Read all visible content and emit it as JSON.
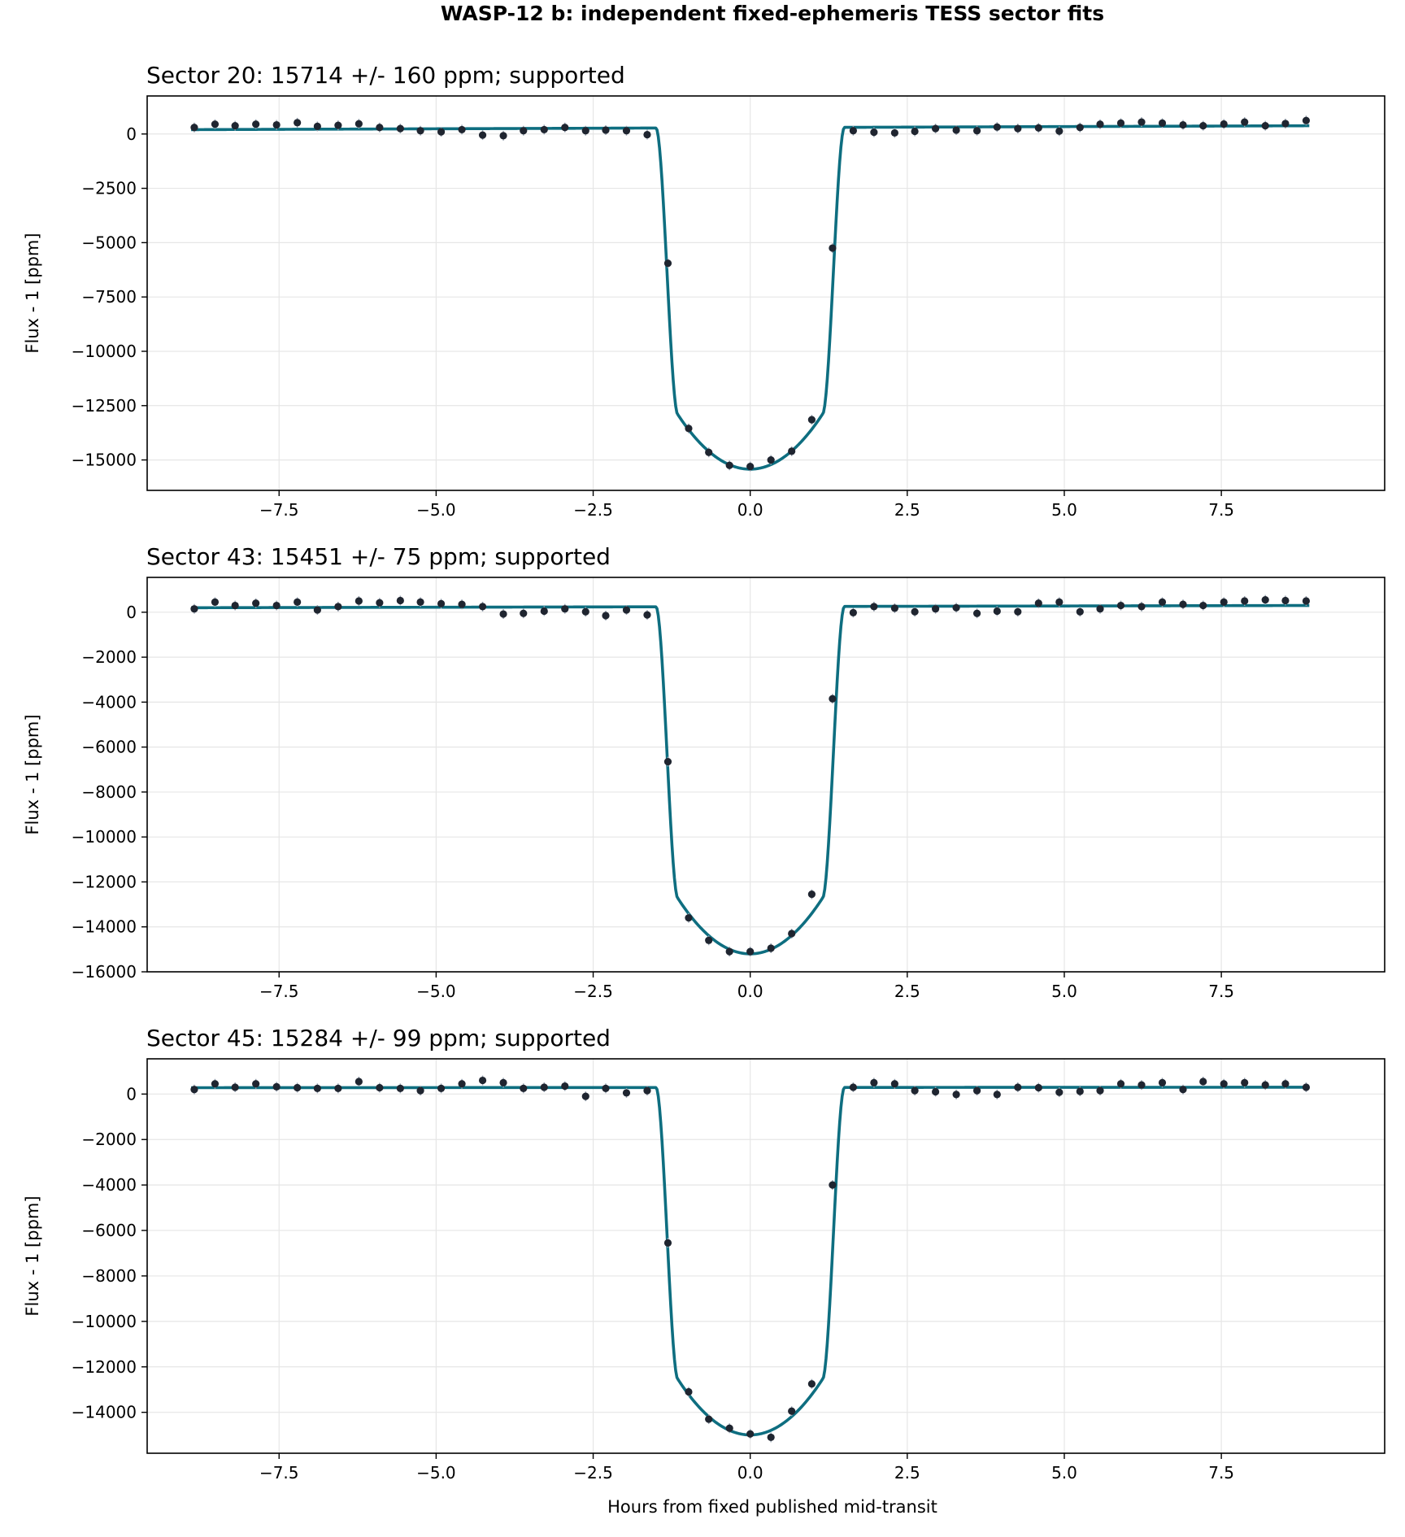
{
  "chart_data": {
    "title": "WASP-12 b: independent fixed-ephemeris TESS sector fits",
    "xlabel": "Hours from fixed published mid-transit",
    "colors": {
      "model": "#0e6e80",
      "points": "#1f2530",
      "grid": "#e6e6e6",
      "errorbar": "#9aa6b4"
    },
    "panels": [
      {
        "type": "scatter",
        "title": "Sector 20: 15714 +/- 160 ppm; supported",
        "ylabel": "Flux - 1 [ppm]",
        "xlim": [
          -9.6,
          10.1
        ],
        "ylim": [
          -16400,
          1750
        ],
        "xticks": [
          -7.5,
          -5.0,
          -2.5,
          0.0,
          2.5,
          5.0,
          7.5
        ],
        "xtick_labels": [
          "−7.5",
          "−5.0",
          "−2.5",
          "0.0",
          "2.5",
          "5.0",
          "7.5"
        ],
        "yticks": [
          0,
          -2500,
          -5000,
          -7500,
          -10000,
          -12500,
          -15000
        ],
        "ytick_labels": [
          "0",
          "−2500",
          "−5000",
          "−7500",
          "−10000",
          "−12500",
          "−15000"
        ],
        "grid": true,
        "model": {
          "depth": 15714,
          "baseline_start": 200,
          "baseline_end": 380,
          "t14": 3.0,
          "t23": 2.3
        },
        "points": {
          "x": [
            -8.85,
            -8.52,
            -8.2,
            -7.87,
            -7.54,
            -7.21,
            -6.89,
            -6.56,
            -6.23,
            -5.9,
            -5.57,
            -5.25,
            -4.92,
            -4.59,
            -4.26,
            -3.93,
            -3.61,
            -3.28,
            -2.95,
            -2.62,
            -2.3,
            -1.97,
            -1.64,
            -1.31,
            -0.98,
            -0.66,
            -0.33,
            0.0,
            0.33,
            0.66,
            0.98,
            1.31,
            1.64,
            1.97,
            2.3,
            2.62,
            2.95,
            3.28,
            3.61,
            3.93,
            4.26,
            4.59,
            4.92,
            5.25,
            5.57,
            5.9,
            6.23,
            6.56,
            6.89,
            7.21,
            7.54,
            7.87,
            8.2,
            8.52,
            8.85
          ],
          "y": [
            300,
            450,
            380,
            450,
            420,
            520,
            350,
            400,
            470,
            300,
            250,
            150,
            100,
            200,
            -50,
            -80,
            150,
            200,
            300,
            150,
            180,
            150,
            -30,
            -5950,
            -13550,
            -14650,
            -15250,
            -15300,
            -15000,
            -14600,
            -13150,
            -5250,
            150,
            80,
            50,
            120,
            250,
            180,
            150,
            320,
            250,
            280,
            130,
            300,
            450,
            500,
            550,
            500,
            420,
            380,
            460,
            550,
            380,
            480,
            620
          ]
        }
      },
      {
        "type": "scatter",
        "title": "Sector 43: 15451 +/- 75 ppm; supported",
        "ylabel": "Flux - 1 [ppm]",
        "xlim": [
          -9.6,
          10.1
        ],
        "ylim": [
          -16000,
          1550
        ],
        "xticks": [
          -7.5,
          -5.0,
          -2.5,
          0.0,
          2.5,
          5.0,
          7.5
        ],
        "xtick_labels": [
          "−7.5",
          "−5.0",
          "−2.5",
          "0.0",
          "2.5",
          "5.0",
          "7.5"
        ],
        "yticks": [
          0,
          -2000,
          -4000,
          -6000,
          -8000,
          -10000,
          -12000,
          -14000,
          -16000
        ],
        "ytick_labels": [
          "0",
          "−2000",
          "−4000",
          "−6000",
          "−8000",
          "−10000",
          "−12000",
          "−14000",
          "−16000"
        ],
        "grid": true,
        "model": {
          "depth": 15451,
          "baseline_start": 200,
          "baseline_end": 300,
          "t14": 3.0,
          "t23": 2.3
        },
        "points": {
          "x": [
            -8.85,
            -8.52,
            -8.2,
            -7.87,
            -7.54,
            -7.21,
            -6.89,
            -6.56,
            -6.23,
            -5.9,
            -5.57,
            -5.25,
            -4.92,
            -4.59,
            -4.26,
            -3.93,
            -3.61,
            -3.28,
            -2.95,
            -2.62,
            -2.3,
            -1.97,
            -1.64,
            -1.31,
            -0.98,
            -0.66,
            -0.33,
            0.0,
            0.33,
            0.66,
            0.98,
            1.31,
            1.64,
            1.97,
            2.3,
            2.62,
            2.95,
            3.28,
            3.61,
            3.93,
            4.26,
            4.59,
            4.92,
            5.25,
            5.57,
            5.9,
            6.23,
            6.56,
            6.89,
            7.21,
            7.54,
            7.87,
            8.2,
            8.52,
            8.85
          ],
          "y": [
            150,
            450,
            300,
            400,
            300,
            450,
            100,
            250,
            500,
            420,
            520,
            450,
            380,
            350,
            250,
            -80,
            -50,
            50,
            150,
            20,
            -150,
            100,
            -120,
            -6650,
            -13600,
            -14600,
            -15100,
            -15100,
            -14950,
            -14300,
            -12550,
            -3850,
            -20,
            250,
            180,
            20,
            150,
            200,
            -50,
            50,
            20,
            400,
            450,
            20,
            150,
            300,
            250,
            450,
            350,
            300,
            450,
            500,
            550,
            520,
            500
          ]
        }
      },
      {
        "type": "scatter",
        "title": "Sector 45: 15284 +/- 99 ppm; supported",
        "ylabel": "Flux - 1 [ppm]",
        "xlabel": "Hours from fixed published mid-transit",
        "xlim": [
          -9.6,
          10.1
        ],
        "ylim": [
          -15800,
          1550
        ],
        "xticks": [
          -7.5,
          -5.0,
          -2.5,
          0.0,
          2.5,
          5.0,
          7.5
        ],
        "xtick_labels": [
          "−7.5",
          "−5.0",
          "−2.5",
          "0.0",
          "2.5",
          "5.0",
          "7.5"
        ],
        "yticks": [
          0,
          -2000,
          -4000,
          -6000,
          -8000,
          -10000,
          -12000,
          -14000
        ],
        "ytick_labels": [
          "0",
          "−2000",
          "−4000",
          "−6000",
          "−8000",
          "−10000",
          "−12000",
          "−14000"
        ],
        "grid": true,
        "model": {
          "depth": 15284,
          "baseline_start": 280,
          "baseline_end": 300,
          "t14": 3.0,
          "t23": 2.3
        },
        "points": {
          "x": [
            -8.85,
            -8.52,
            -8.2,
            -7.87,
            -7.54,
            -7.21,
            -6.89,
            -6.56,
            -6.23,
            -5.9,
            -5.57,
            -5.25,
            -4.92,
            -4.59,
            -4.26,
            -3.93,
            -3.61,
            -3.28,
            -2.95,
            -2.62,
            -2.3,
            -1.97,
            -1.64,
            -1.31,
            -0.98,
            -0.66,
            -0.33,
            0.0,
            0.33,
            0.66,
            0.98,
            1.31,
            1.64,
            1.97,
            2.3,
            2.62,
            2.95,
            3.28,
            3.61,
            3.93,
            4.26,
            4.59,
            4.92,
            5.25,
            5.57,
            5.9,
            6.23,
            6.56,
            6.89,
            7.21,
            7.54,
            7.87,
            8.2,
            8.52,
            8.85
          ],
          "y": [
            200,
            450,
            300,
            450,
            320,
            280,
            250,
            250,
            550,
            280,
            250,
            150,
            250,
            450,
            600,
            500,
            250,
            300,
            350,
            -100,
            250,
            50,
            150,
            -6550,
            -13100,
            -14300,
            -14700,
            -14950,
            -15100,
            -13950,
            -12750,
            -4000,
            300,
            500,
            450,
            150,
            100,
            -20,
            150,
            -20,
            300,
            280,
            80,
            120,
            150,
            450,
            400,
            500,
            200,
            550,
            450,
            500,
            400,
            450,
            300
          ]
        }
      }
    ]
  }
}
